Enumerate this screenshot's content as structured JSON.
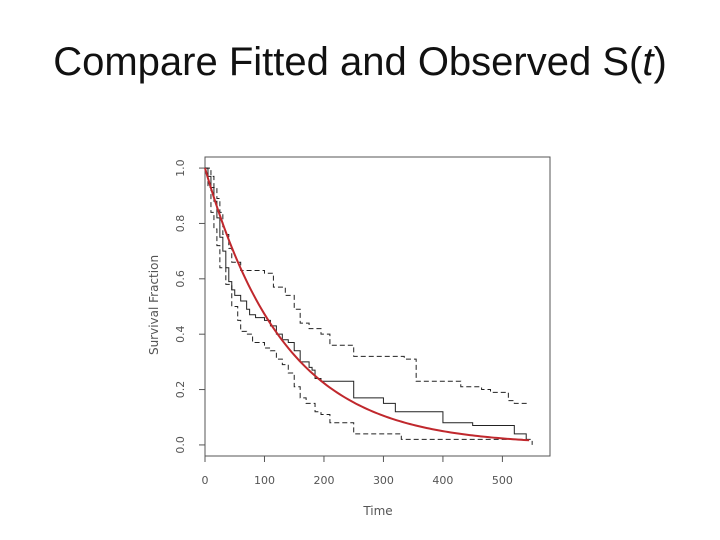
{
  "slide": {
    "title_prefix": "Compare Fitted and Observed S(",
    "title_var": "t",
    "title_suffix": ")"
  },
  "chart_data": {
    "type": "line",
    "title": "",
    "xlabel": "Time",
    "ylabel": "Survival Fraction",
    "xlim": [
      0,
      580
    ],
    "ylim": [
      -0.04,
      1.04
    ],
    "xticks": [
      0,
      100,
      200,
      300,
      400,
      500
    ],
    "yticks": [
      0.0,
      0.2,
      0.4,
      0.6,
      0.8,
      1.0
    ],
    "x_tick_labels": [
      "0",
      "100",
      "200",
      "300",
      "400",
      "500"
    ],
    "y_tick_labels": [
      "0.0",
      "0.2",
      "0.4",
      "0.6",
      "0.8",
      "1.0"
    ],
    "grid": false,
    "colors": {
      "km": "#222222",
      "ci": "#222222",
      "fitted": "#c0282d",
      "frame": "#555555"
    },
    "series": [
      {
        "kind": "step",
        "style": "solid",
        "points": [
          [
            0,
            1.0
          ],
          [
            5,
            0.97
          ],
          [
            10,
            0.93
          ],
          [
            15,
            0.88
          ],
          [
            20,
            0.82
          ],
          [
            25,
            0.75
          ],
          [
            30,
            0.7
          ],
          [
            35,
            0.64
          ],
          [
            40,
            0.59
          ],
          [
            45,
            0.56
          ],
          [
            50,
            0.54
          ],
          [
            60,
            0.52
          ],
          [
            70,
            0.49
          ],
          [
            75,
            0.47
          ],
          [
            85,
            0.46
          ],
          [
            100,
            0.45
          ],
          [
            110,
            0.43
          ],
          [
            120,
            0.4
          ],
          [
            130,
            0.38
          ],
          [
            140,
            0.37
          ],
          [
            150,
            0.34
          ],
          [
            160,
            0.3
          ],
          [
            175,
            0.28
          ],
          [
            180,
            0.27
          ],
          [
            185,
            0.24
          ],
          [
            195,
            0.23
          ],
          [
            210,
            0.23
          ],
          [
            250,
            0.17
          ],
          [
            300,
            0.15
          ],
          [
            320,
            0.12
          ],
          [
            400,
            0.08
          ],
          [
            450,
            0.07
          ],
          [
            520,
            0.04
          ],
          [
            540,
            0.02
          ]
        ]
      },
      {
        "kind": "step",
        "style": "dashed",
        "points": [
          [
            0,
            1.0
          ],
          [
            10,
            0.97
          ],
          [
            15,
            0.93
          ],
          [
            20,
            0.89
          ],
          [
            25,
            0.84
          ],
          [
            30,
            0.76
          ],
          [
            40,
            0.71
          ],
          [
            45,
            0.66
          ],
          [
            60,
            0.63
          ],
          [
            100,
            0.62
          ],
          [
            115,
            0.57
          ],
          [
            135,
            0.54
          ],
          [
            150,
            0.49
          ],
          [
            160,
            0.44
          ],
          [
            175,
            0.42
          ],
          [
            185,
            0.42
          ],
          [
            195,
            0.4
          ],
          [
            210,
            0.36
          ],
          [
            250,
            0.32
          ],
          [
            335,
            0.31
          ],
          [
            355,
            0.23
          ],
          [
            415,
            0.23
          ],
          [
            430,
            0.21
          ],
          [
            465,
            0.2
          ],
          [
            480,
            0.19
          ],
          [
            510,
            0.16
          ],
          [
            520,
            0.15
          ],
          [
            545,
            0.15
          ]
        ]
      },
      {
        "kind": "step",
        "style": "dashed",
        "points": [
          [
            0,
            1.0
          ],
          [
            5,
            0.93
          ],
          [
            10,
            0.84
          ],
          [
            15,
            0.78
          ],
          [
            20,
            0.72
          ],
          [
            25,
            0.64
          ],
          [
            35,
            0.58
          ],
          [
            45,
            0.5
          ],
          [
            55,
            0.45
          ],
          [
            60,
            0.41
          ],
          [
            70,
            0.4
          ],
          [
            80,
            0.37
          ],
          [
            100,
            0.35
          ],
          [
            110,
            0.34
          ],
          [
            120,
            0.31
          ],
          [
            130,
            0.29
          ],
          [
            140,
            0.26
          ],
          [
            150,
            0.21
          ],
          [
            160,
            0.17
          ],
          [
            170,
            0.15
          ],
          [
            185,
            0.12
          ],
          [
            195,
            0.11
          ],
          [
            210,
            0.08
          ],
          [
            250,
            0.04
          ],
          [
            325,
            0.04
          ],
          [
            330,
            0.02
          ],
          [
            545,
            0.02
          ],
          [
            550,
            0.0
          ]
        ]
      },
      {
        "kind": "smooth",
        "name": "fitted",
        "style": "solid",
        "model": "exponential",
        "rate": 0.0075,
        "x_range": [
          0,
          545
        ],
        "points": [
          [
            0,
            1.0
          ],
          [
            50,
            0.687
          ],
          [
            100,
            0.472
          ],
          [
            150,
            0.325
          ],
          [
            200,
            0.223
          ],
          [
            250,
            0.153
          ],
          [
            300,
            0.105
          ],
          [
            400,
            0.05
          ],
          [
            500,
            0.024
          ],
          [
            545,
            0.017
          ]
        ]
      }
    ]
  }
}
